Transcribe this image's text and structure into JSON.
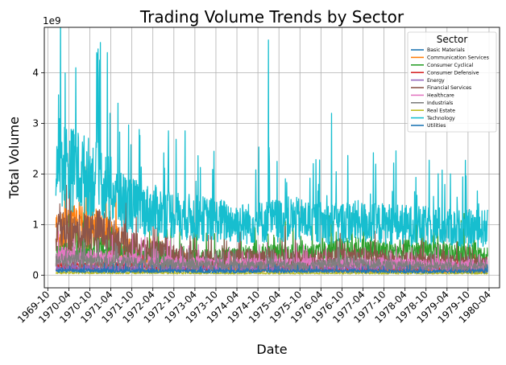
{
  "chart_data": {
    "type": "line",
    "title": "Trading Volume Trends by Sector",
    "xlabel": "Date",
    "ylabel": "Total Volume",
    "y_offset_label": "1e9",
    "x_tick_labels": [
      "1969-10",
      "1970-04",
      "1970-10",
      "1971-04",
      "1971-10",
      "1972-04",
      "1972-10",
      "1973-04",
      "1973-10",
      "1974-04",
      "1974-10",
      "1975-04",
      "1975-10",
      "1976-04",
      "1976-10",
      "1977-04",
      "1977-10",
      "1978-04",
      "1978-10",
      "1979-04",
      "1979-10",
      "1980-04"
    ],
    "y_ticks": [
      0,
      1,
      2,
      3,
      4
    ],
    "xlim": [
      "1969-09",
      "1980-07"
    ],
    "ylim": [
      -0.25,
      4.9
    ],
    "y_unit": "1e9",
    "grid": true,
    "legend": {
      "title": "Sector",
      "placement": "top-right"
    },
    "series": [
      {
        "name": "Basic Materials",
        "color": "#1f77b4",
        "values": [
          [
            "1970-01",
            0.12
          ],
          [
            "1972-01",
            0.11
          ],
          [
            "1974-01",
            0.1
          ],
          [
            "1976-01",
            0.11
          ],
          [
            "1978-01",
            0.1
          ],
          [
            "1980-03",
            0.1
          ]
        ]
      },
      {
        "name": "Communication Services",
        "color": "#ff7f0e",
        "values": [
          [
            "1970-01",
            0.85
          ],
          [
            "1970-07",
            1.05
          ],
          [
            "1971-01",
            0.95
          ],
          [
            "1971-07",
            0.65
          ],
          [
            "1972-01",
            0.35
          ],
          [
            "1974-01",
            0.15
          ],
          [
            "1976-01",
            0.12
          ],
          [
            "1978-01",
            0.1
          ],
          [
            "1980-03",
            0.08
          ]
        ]
      },
      {
        "name": "Consumer Cyclical",
        "color": "#2ca02c",
        "values": [
          [
            "1970-01",
            0.45
          ],
          [
            "1971-01",
            0.55
          ],
          [
            "1972-01",
            0.4
          ],
          [
            "1973-01",
            0.35
          ],
          [
            "1974-01",
            0.4
          ],
          [
            "1975-01",
            0.45
          ],
          [
            "1976-01",
            0.45
          ],
          [
            "1977-01",
            0.55
          ],
          [
            "1978-01",
            0.5
          ],
          [
            "1979-01",
            0.5
          ],
          [
            "1980-03",
            0.45
          ]
        ]
      },
      {
        "name": "Consumer Defensive",
        "color": "#d62728",
        "values": [
          [
            "1970-01",
            0.2
          ],
          [
            "1972-01",
            0.18
          ],
          [
            "1974-01",
            0.17
          ],
          [
            "1976-01",
            0.18
          ],
          [
            "1978-01",
            0.17
          ],
          [
            "1980-03",
            0.16
          ]
        ]
      },
      {
        "name": "Energy",
        "color": "#9467bd",
        "values": [
          [
            "1970-01",
            0.15
          ],
          [
            "1972-01",
            0.14
          ],
          [
            "1974-01",
            0.15
          ],
          [
            "1976-01",
            0.14
          ],
          [
            "1978-01",
            0.15
          ],
          [
            "1980-03",
            0.14
          ]
        ]
      },
      {
        "name": "Financial Services",
        "color": "#8c564b",
        "values": [
          [
            "1970-01",
            0.9
          ],
          [
            "1970-07",
            0.85
          ],
          [
            "1971-01",
            0.95
          ],
          [
            "1971-07",
            0.7
          ],
          [
            "1972-01",
            0.55
          ],
          [
            "1973-01",
            0.4
          ],
          [
            "1974-01",
            0.35
          ],
          [
            "1975-01",
            0.4
          ],
          [
            "1976-01",
            0.35
          ],
          [
            "1977-01",
            0.4
          ],
          [
            "1978-01",
            0.35
          ],
          [
            "1979-01",
            0.3
          ],
          [
            "1980-03",
            0.25
          ]
        ]
      },
      {
        "name": "Healthcare",
        "color": "#e377c2",
        "values": [
          [
            "1970-01",
            0.4
          ],
          [
            "1971-01",
            0.38
          ],
          [
            "1972-01",
            0.3
          ],
          [
            "1974-01",
            0.25
          ],
          [
            "1976-01",
            0.25
          ],
          [
            "1978-01",
            0.25
          ],
          [
            "1980-03",
            0.22
          ]
        ]
      },
      {
        "name": "Industrials",
        "color": "#7f7f7f",
        "values": [
          [
            "1970-01",
            0.3
          ],
          [
            "1972-01",
            0.25
          ],
          [
            "1974-01",
            0.2
          ],
          [
            "1976-01",
            0.2
          ],
          [
            "1977-01",
            0.28
          ],
          [
            "1978-01",
            0.2
          ],
          [
            "1980-03",
            0.18
          ]
        ]
      },
      {
        "name": "Real Estate",
        "color": "#bcbd22",
        "values": [
          [
            "1970-01",
            0.05
          ],
          [
            "1972-01",
            0.05
          ],
          [
            "1974-01",
            0.04
          ],
          [
            "1976-01",
            0.04
          ],
          [
            "1978-01",
            0.04
          ],
          [
            "1980-03",
            0.04
          ]
        ]
      },
      {
        "name": "Technology",
        "color": "#17becf",
        "values": [
          [
            "1969-12",
            1.9
          ],
          [
            "1970-01",
            2.5
          ],
          [
            "1970-04",
            2.3
          ],
          [
            "1970-07",
            2.2
          ],
          [
            "1970-10",
            2.1
          ],
          [
            "1971-01",
            2.0
          ],
          [
            "1971-04",
            1.8
          ],
          [
            "1971-07",
            1.6
          ],
          [
            "1971-10",
            1.5
          ],
          [
            "1972-01",
            1.4
          ],
          [
            "1972-07",
            1.35
          ],
          [
            "1973-01",
            1.25
          ],
          [
            "1973-07",
            1.2
          ],
          [
            "1974-01",
            1.15
          ],
          [
            "1974-07",
            1.1
          ],
          [
            "1975-01",
            1.15
          ],
          [
            "1975-07",
            1.2
          ],
          [
            "1976-01",
            1.15
          ],
          [
            "1976-07",
            1.1
          ],
          [
            "1977-01",
            1.15
          ],
          [
            "1977-07",
            1.1
          ],
          [
            "1978-01",
            1.1
          ],
          [
            "1978-07",
            1.05
          ],
          [
            "1979-01",
            1.05
          ],
          [
            "1979-07",
            1.0
          ],
          [
            "1980-01",
            1.0
          ],
          [
            "1980-03",
            1.0
          ]
        ],
        "peaks": [
          [
            "1970-03",
            4.0
          ],
          [
            "1970-06",
            4.1
          ],
          [
            "1970-12",
            4.4
          ],
          [
            "1971-01",
            4.6
          ],
          [
            "1971-03",
            4.4
          ],
          [
            "1971-06",
            3.4
          ],
          [
            "1975-01",
            4.65
          ],
          [
            "1976-07",
            3.2
          ]
        ]
      },
      {
        "name": "Utilities",
        "color": "#1f77b4",
        "values": [
          [
            "1970-01",
            0.1
          ],
          [
            "1972-01",
            0.09
          ],
          [
            "1974-01",
            0.08
          ],
          [
            "1976-01",
            0.09
          ],
          [
            "1978-01",
            0.08
          ],
          [
            "1980-03",
            0.08
          ]
        ]
      }
    ]
  }
}
